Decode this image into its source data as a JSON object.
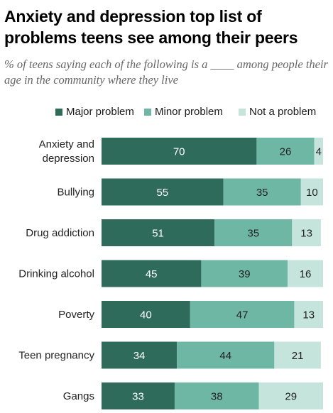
{
  "title": "Anxiety and depression top list of problems teens see among their peers",
  "subtitle": "% of teens saying each of the following is a ____ among people their age in the community where they live",
  "colors": {
    "major": "#2e6b5b",
    "minor": "#6fb7a5",
    "not": "#c5e4dc"
  },
  "legend": [
    {
      "label": "Major problem",
      "color": "#2e6b5b"
    },
    {
      "label": "Minor problem",
      "color": "#6fb7a5"
    },
    {
      "label": "Not a problem",
      "color": "#c5e4dc"
    }
  ],
  "chart_data": {
    "type": "bar",
    "orientation": "horizontal",
    "stacked": true,
    "categories": [
      "Anxiety and depression",
      "Bullying",
      "Drug addiction",
      "Drinking alcohol",
      "Poverty",
      "Teen pregnancy",
      "Gangs"
    ],
    "category_lines": [
      [
        "Anxiety and",
        "depression"
      ],
      [
        "Bullying"
      ],
      [
        "Drug addiction"
      ],
      [
        "Drinking alcohol"
      ],
      [
        "Poverty"
      ],
      [
        "Teen pregnancy"
      ],
      [
        "Gangs"
      ]
    ],
    "series": [
      {
        "name": "Major problem",
        "values": [
          70,
          55,
          51,
          45,
          40,
          34,
          33
        ]
      },
      {
        "name": "Minor problem",
        "values": [
          26,
          35,
          35,
          39,
          47,
          44,
          38
        ]
      },
      {
        "name": "Not a problem",
        "values": [
          4,
          10,
          13,
          16,
          13,
          21,
          29
        ]
      }
    ],
    "xlim": [
      0,
      100
    ]
  }
}
